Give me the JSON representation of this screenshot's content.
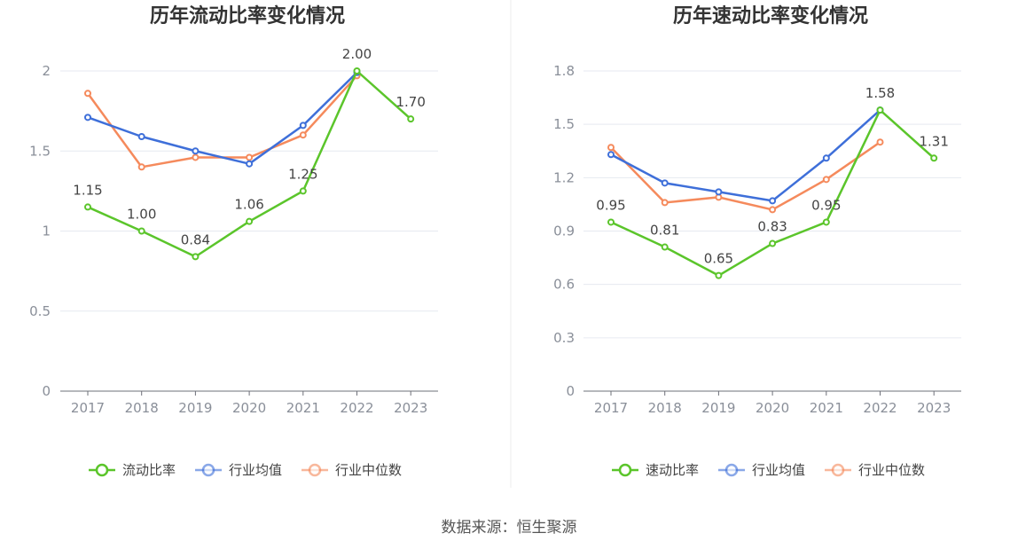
{
  "source_text": "数据来源：恒生聚源",
  "chart_data": [
    {
      "type": "line",
      "title": "历年流动比率变化情况",
      "categories": [
        "2017",
        "2018",
        "2019",
        "2020",
        "2021",
        "2022",
        "2023"
      ],
      "ylim": [
        0,
        2
      ],
      "yticks": [
        "0",
        "0.5",
        "1",
        "1.5",
        "2"
      ],
      "ytick_values": [
        0,
        0.5,
        1,
        1.5,
        2
      ],
      "grid": true,
      "legend_position": "bottom",
      "series": [
        {
          "name": "流动比率",
          "color": "#5bc52b",
          "values": [
            1.15,
            1.0,
            0.84,
            1.06,
            1.25,
            2.0,
            1.7
          ],
          "labels": [
            "1.15",
            "1.00",
            "0.84",
            "1.06",
            "1.25",
            "2.00",
            "1.70"
          ]
        },
        {
          "name": "行业均值",
          "color": "#3e6fd9",
          "values": [
            1.71,
            1.59,
            1.5,
            1.42,
            1.66,
            1.99,
            null
          ]
        },
        {
          "name": "行业中位数",
          "color": "#f58a5c",
          "values": [
            1.86,
            1.4,
            1.46,
            1.46,
            1.6,
            1.97,
            null
          ]
        }
      ]
    },
    {
      "type": "line",
      "title": "历年速动比率变化情况",
      "categories": [
        "2017",
        "2018",
        "2019",
        "2020",
        "2021",
        "2022",
        "2023"
      ],
      "ylim": [
        0,
        1.8
      ],
      "yticks": [
        "0",
        "0.3",
        "0.6",
        "0.9",
        "1.2",
        "1.5",
        "1.8"
      ],
      "ytick_values": [
        0,
        0.3,
        0.6,
        0.9,
        1.2,
        1.5,
        1.8
      ],
      "grid": true,
      "legend_position": "bottom",
      "series": [
        {
          "name": "速动比率",
          "color": "#5bc52b",
          "values": [
            0.95,
            0.81,
            0.65,
            0.83,
            0.95,
            1.58,
            1.31
          ],
          "labels": [
            "0.95",
            "0.81",
            "0.65",
            "0.83",
            "0.95",
            "1.58",
            "1.31"
          ]
        },
        {
          "name": "行业均值",
          "color": "#3e6fd9",
          "values": [
            1.33,
            1.17,
            1.12,
            1.07,
            1.31,
            1.58,
            null
          ]
        },
        {
          "name": "行业中位数",
          "color": "#f58a5c",
          "values": [
            1.37,
            1.06,
            1.09,
            1.02,
            1.19,
            1.4,
            null
          ]
        }
      ]
    }
  ]
}
